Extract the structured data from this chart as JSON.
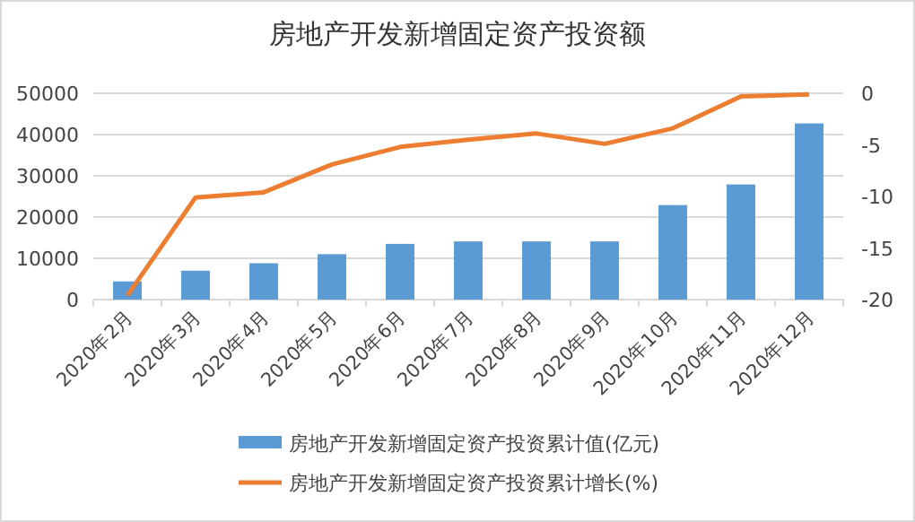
{
  "chart_data": {
    "type": "bar",
    "title": "房地产开发新增固定资产投资额",
    "categories": [
      "2020年2月",
      "2020年3月",
      "2020年4月",
      "2020年5月",
      "2020年6月",
      "2020年7月",
      "2020年8月",
      "2020年9月",
      "2020年10月",
      "2020年11月",
      "2020年12月"
    ],
    "series": [
      {
        "name": "房地产开发新增固定资产投资累计值(亿元)",
        "color": "#5b9bd5",
        "values": [
          4400,
          7000,
          8800,
          11000,
          13500,
          14100,
          14100,
          14100,
          22900,
          27900,
          42700
        ]
      },
      {
        "name": "房地产开发新增固定资产投资累计增长(%)",
        "type": "line",
        "axis": "y2",
        "color": "#ed7d31",
        "marker": "none",
        "values": [
          -19.6,
          -10.1,
          -9.6,
          -6.9,
          -5.2,
          -4.5,
          -3.9,
          -4.9,
          -3.4,
          -0.3,
          -0.1
        ]
      }
    ],
    "ylim": [
      0,
      50000
    ],
    "yticks": [
      0,
      10000,
      20000,
      30000,
      40000,
      50000
    ],
    "y2lim": [
      -20,
      0
    ],
    "y2ticks": [
      -20,
      -15,
      -10,
      -5,
      0
    ],
    "grid": "y",
    "legend": "bottom"
  }
}
